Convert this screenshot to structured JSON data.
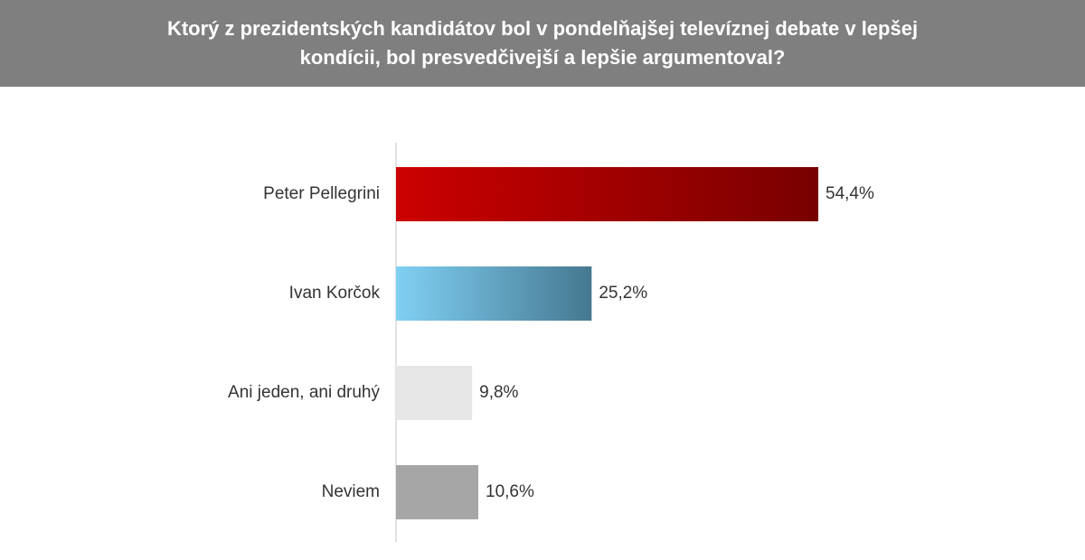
{
  "chart_data": {
    "type": "hbar",
    "title": "Ktorý z prezidentských kandidátov bol v pondelňajšej televíznej debate v lepšej kondícii, bol presvedčivejší a lepšie argumentoval?",
    "categories": [
      "Peter Pellegrini",
      "Ivan Korčok",
      "Ani jeden, ani druhý",
      "Neviem"
    ],
    "values": [
      54.4,
      25.2,
      9.8,
      10.6
    ],
    "value_labels": [
      "54,4%",
      "25,2%",
      "9,8%",
      "10,6%"
    ],
    "colors": [
      [
        "#cc0000",
        "#780000"
      ],
      [
        "#80d0f4",
        "#457890"
      ],
      [
        "#e6e6e6",
        "#e6e6e6"
      ],
      [
        "#a6a6a6",
        "#a6a6a6"
      ]
    ]
  }
}
